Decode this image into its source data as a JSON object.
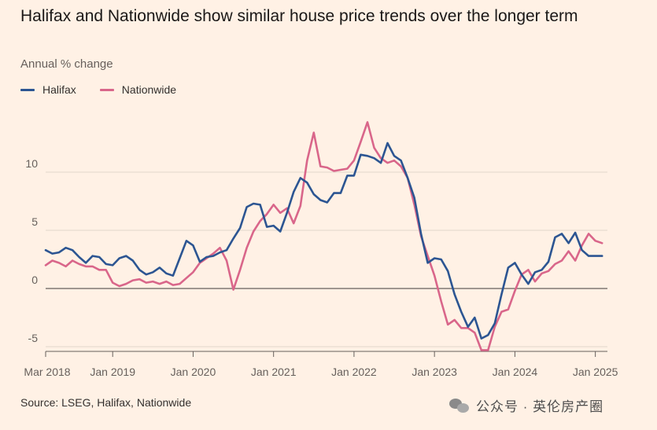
{
  "title": "Halifax and Nationwide show similar house price trends over the longer term",
  "subtitle": "Annual % change",
  "source": "Source: LSEG, Halifax, Nationwide",
  "watermark": "公众号 · 英伦房产圈",
  "colors": {
    "background": "#FFF1E5",
    "halifax": "#2C5592",
    "nationwide": "#D9668A",
    "gridline": "#E2D6CB",
    "zero_line": "#66605C"
  },
  "chart_data": {
    "type": "line",
    "title": "Halifax and Nationwide show similar house price trends over the longer term",
    "ylabel": "Annual % change",
    "ylim": [
      -5.5,
      15
    ],
    "y_ticks": [
      10,
      5,
      0,
      -5
    ],
    "grid": true,
    "legend_position": "top-left",
    "x_tick_labels": [
      "Mar 2018",
      "Jan 2019",
      "Jan 2020",
      "Jan 2021",
      "Jan 2022",
      "Jan 2023",
      "Jan 2024",
      "Jan 2025"
    ],
    "x_tick_months": [
      "2018-03",
      "2019-01",
      "2020-01",
      "2021-01",
      "2022-01",
      "2023-01",
      "2024-01",
      "2025-01"
    ],
    "x": [
      "2018-03",
      "2018-04",
      "2018-05",
      "2018-06",
      "2018-07",
      "2018-08",
      "2018-09",
      "2018-10",
      "2018-11",
      "2018-12",
      "2019-01",
      "2019-02",
      "2019-03",
      "2019-04",
      "2019-05",
      "2019-06",
      "2019-07",
      "2019-08",
      "2019-09",
      "2019-10",
      "2019-11",
      "2019-12",
      "2020-01",
      "2020-02",
      "2020-03",
      "2020-04",
      "2020-05",
      "2020-06",
      "2020-07",
      "2020-08",
      "2020-09",
      "2020-10",
      "2020-11",
      "2020-12",
      "2021-01",
      "2021-02",
      "2021-03",
      "2021-04",
      "2021-05",
      "2021-06",
      "2021-07",
      "2021-08",
      "2021-09",
      "2021-10",
      "2021-11",
      "2021-12",
      "2022-01",
      "2022-02",
      "2022-03",
      "2022-04",
      "2022-05",
      "2022-06",
      "2022-07",
      "2022-08",
      "2022-09",
      "2022-10",
      "2022-11",
      "2022-12",
      "2023-01",
      "2023-02",
      "2023-03",
      "2023-04",
      "2023-05",
      "2023-06",
      "2023-07",
      "2023-08",
      "2023-09",
      "2023-10",
      "2023-11",
      "2023-12",
      "2024-01",
      "2024-02",
      "2024-03",
      "2024-04",
      "2024-05",
      "2024-06",
      "2024-07",
      "2024-08",
      "2024-09",
      "2024-10",
      "2024-11",
      "2024-12",
      "2025-01",
      "2025-02"
    ],
    "series": [
      {
        "name": "Halifax",
        "values": [
          3.3,
          3.0,
          3.1,
          3.5,
          3.3,
          2.7,
          2.2,
          2.8,
          2.7,
          2.1,
          2.0,
          2.6,
          2.8,
          2.4,
          1.6,
          1.2,
          1.4,
          1.8,
          1.3,
          1.1,
          2.6,
          4.1,
          3.7,
          2.3,
          2.7,
          2.8,
          3.1,
          3.3,
          4.3,
          5.2,
          7.0,
          7.3,
          7.2,
          5.3,
          5.4,
          4.9,
          6.5,
          8.3,
          9.5,
          9.1,
          8.1,
          7.6,
          7.4,
          8.2,
          8.2,
          9.7,
          9.7,
          11.5,
          11.4,
          11.2,
          10.8,
          12.5,
          11.4,
          11.0,
          9.5,
          7.8,
          4.7,
          2.2,
          2.6,
          2.5,
          1.5,
          -0.5,
          -2.0,
          -3.3,
          -2.5,
          -4.3,
          -4.0,
          -3.0,
          -0.5,
          1.8,
          2.2,
          1.2,
          0.4,
          1.4,
          1.6,
          2.3,
          4.4,
          4.7,
          3.9,
          4.8,
          3.3,
          2.8,
          2.8,
          2.8
        ]
      },
      {
        "name": "Nationwide",
        "values": [
          2.0,
          2.4,
          2.2,
          1.9,
          2.4,
          2.1,
          1.9,
          1.9,
          1.6,
          1.6,
          0.5,
          0.2,
          0.4,
          0.7,
          0.8,
          0.5,
          0.6,
          0.4,
          0.6,
          0.3,
          0.4,
          0.9,
          1.4,
          2.2,
          2.6,
          3.0,
          3.5,
          2.4,
          -0.1,
          1.6,
          3.5,
          4.9,
          5.8,
          6.4,
          7.2,
          6.5,
          6.9,
          5.6,
          7.1,
          11.0,
          13.4,
          10.5,
          10.4,
          10.1,
          10.2,
          10.3,
          11.0,
          12.6,
          14.3,
          12.1,
          11.2,
          10.8,
          11.0,
          10.5,
          9.5,
          7.2,
          4.5,
          2.8,
          1.1,
          -1.1,
          -3.1,
          -2.7,
          -3.4,
          -3.4,
          -3.8,
          -5.3,
          -5.3,
          -3.3,
          -2.0,
          -1.8,
          -0.2,
          1.2,
          1.6,
          0.6,
          1.3,
          1.5,
          2.1,
          2.4,
          3.2,
          2.4,
          3.7,
          4.7,
          4.1,
          3.9
        ]
      }
    ]
  },
  "legend": [
    {
      "label": "Halifax",
      "color": "#2C5592"
    },
    {
      "label": "Nationwide",
      "color": "#D9668A"
    }
  ]
}
